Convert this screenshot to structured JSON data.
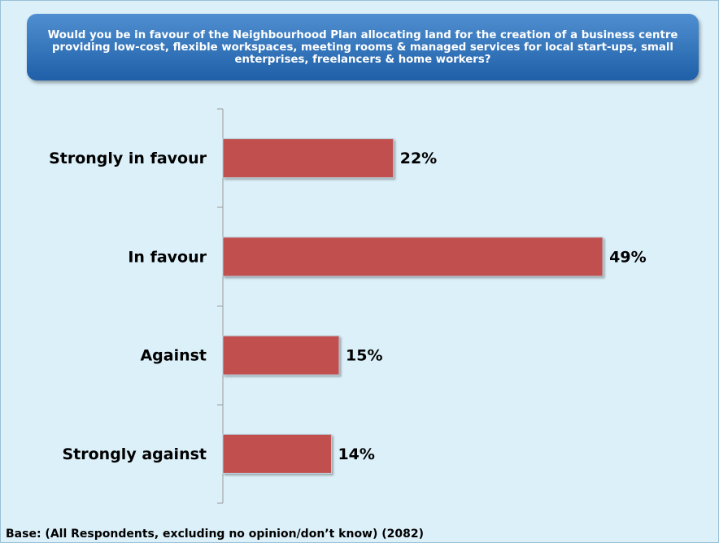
{
  "chart_data": {
    "type": "bar",
    "orientation": "horizontal",
    "title": "Would you be in favour of the Neighbourhood Plan allocating land for the creation of a business centre providing low-cost, flexible workspaces, meeting rooms & managed services for local start-ups, small enterprises, freelancers & home workers?",
    "categories": [
      "Strongly in favour",
      "In favour",
      "Against",
      "Strongly against"
    ],
    "values": [
      22,
      49,
      15,
      14
    ],
    "value_labels": [
      "22%",
      "49%",
      "15%",
      "14%"
    ],
    "color": "#c0504d",
    "xlim": [
      0,
      60
    ],
    "footnote": "Base: (All Respondents, excluding no opinion/don’t know) (2082)"
  }
}
